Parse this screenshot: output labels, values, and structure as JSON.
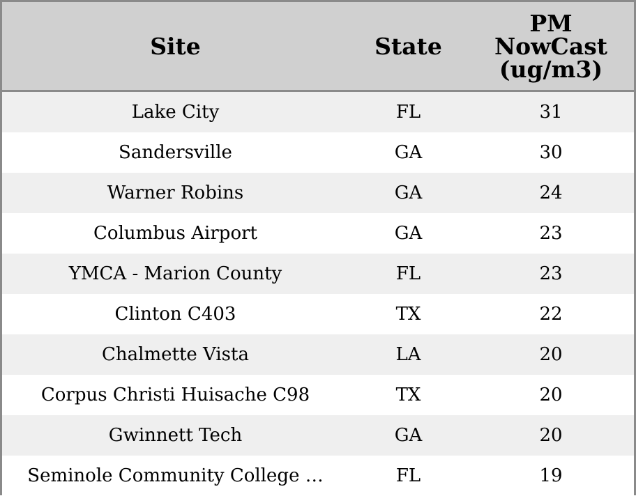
{
  "chart_data": {
    "type": "table",
    "columns": [
      "Site",
      "State",
      "PM NowCast (ug/m3)"
    ],
    "header_lines": [
      [
        "Site"
      ],
      [
        "State"
      ],
      [
        "PM",
        "NowCast",
        "(ug/m3)"
      ]
    ],
    "rows": [
      {
        "site": "Lake City",
        "state": "FL",
        "pm": "31"
      },
      {
        "site": "Sandersville",
        "state": "GA",
        "pm": "30"
      },
      {
        "site": "Warner Robins",
        "state": "GA",
        "pm": "24"
      },
      {
        "site": "Columbus Airport",
        "state": "GA",
        "pm": "23"
      },
      {
        "site": "YMCA - Marion County",
        "state": "FL",
        "pm": "23"
      },
      {
        "site": "Clinton C403",
        "state": "TX",
        "pm": "22"
      },
      {
        "site": "Chalmette Vista",
        "state": "LA",
        "pm": "20"
      },
      {
        "site": "Corpus Christi Huisache C98",
        "state": "TX",
        "pm": "20"
      },
      {
        "site": "Gwinnett Tech",
        "state": "GA",
        "pm": "20"
      },
      {
        "site": "Seminole Community College …",
        "state": "FL",
        "pm": "19"
      }
    ],
    "colors": {
      "header_bg": "#d0d0d0",
      "row_alt_bg": "#efefef",
      "row_bg": "#ffffff",
      "border": "#8a8a8a"
    }
  }
}
